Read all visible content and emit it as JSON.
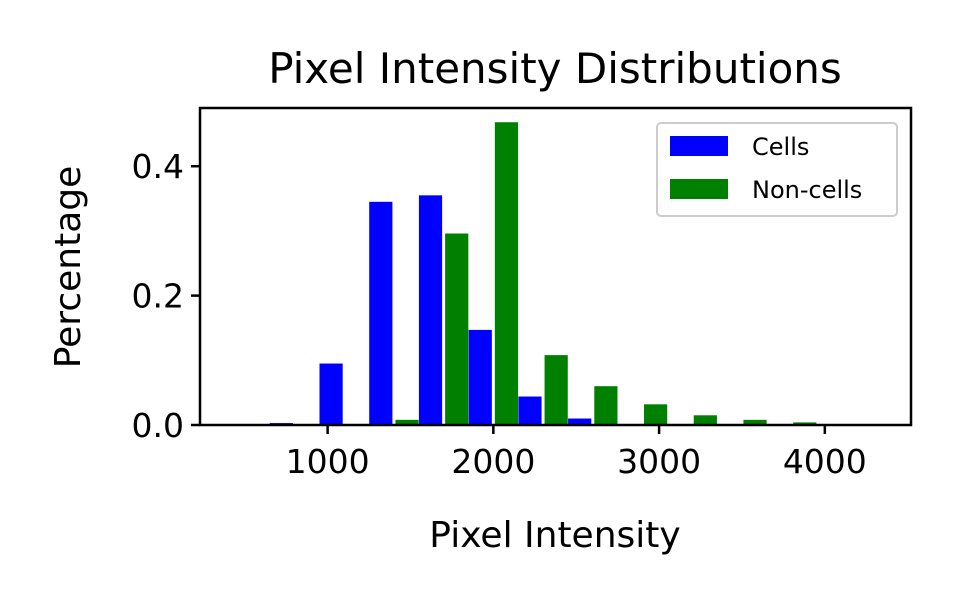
{
  "chart_data": {
    "type": "bar",
    "title": "Pixel Intensity Distributions",
    "xlabel": "Pixel Intensity",
    "ylabel": "Percentage",
    "xlim": [
      230,
      4520
    ],
    "ylim": [
      0.0,
      0.49
    ],
    "xticks": [
      1000,
      2000,
      3000,
      4000
    ],
    "xtick_labels": [
      "1000",
      "2000",
      "3000",
      "4000"
    ],
    "yticks": [
      0.0,
      0.2,
      0.4
    ],
    "ytick_labels": [
      "0.0",
      "0.2",
      "0.4"
    ],
    "bar_width": 140,
    "grid": false,
    "legend_position": "upper right",
    "series": [
      {
        "name": "Cells",
        "color": "#0000ff",
        "x": [
          800,
          1100,
          1400,
          1700,
          2000,
          2300,
          2600,
          2900,
          3200,
          3500,
          3800,
          4100
        ],
        "values": [
          0.003,
          0.095,
          0.345,
          0.355,
          0.147,
          0.044,
          0.01,
          0.0,
          0.0,
          0.0,
          0.0,
          0.0
        ]
      },
      {
        "name": "Non-cells",
        "color": "#008000",
        "x": [
          800,
          1100,
          1400,
          1700,
          2000,
          2300,
          2600,
          2900,
          3200,
          3500,
          3800,
          4100
        ],
        "values": [
          0.0,
          0.0,
          0.008,
          0.296,
          0.468,
          0.108,
          0.06,
          0.032,
          0.015,
          0.008,
          0.004,
          0.001
        ]
      }
    ]
  }
}
